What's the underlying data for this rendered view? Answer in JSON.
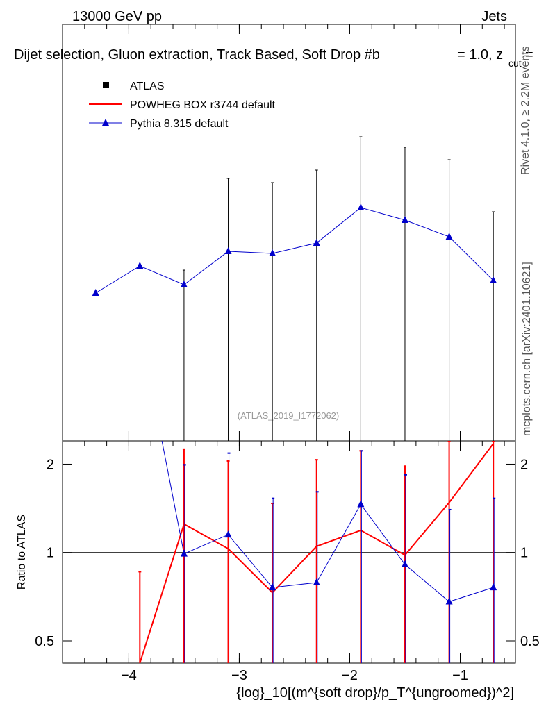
{
  "header": {
    "energy": "13000 GeV pp",
    "category": "Jets",
    "title_prefix": "Dijet selection, Gluon extraction, Track Based, Soft Drop #b",
    "title_eq": "= 1.0, z",
    "title_sub": "cut",
    "title_end": "="
  },
  "side": {
    "rivet": "Rivet 4.1.0, ≥ 2.2M events",
    "mcplots": "mcplots.cern.ch [arXiv:2401.10621]"
  },
  "watermark": "(ATLAS_2019_I1772062)",
  "legend": {
    "atlas": "ATLAS",
    "powheg": "POWHEG BOX r3744 default",
    "pythia": "Pythia 8.315 default"
  },
  "colors": {
    "data": "#000000",
    "powheg": "#ff0000",
    "pythia": "#0000cc"
  },
  "chart_data": [
    {
      "type": "line",
      "panel": "main",
      "x": [
        -4.3,
        -3.9,
        -3.5,
        -3.1,
        -2.7,
        -2.3,
        -1.9,
        -1.5,
        -1.1,
        -0.7
      ],
      "xlim": [
        -4.6,
        -0.5
      ],
      "ylim": [
        0,
        1
      ],
      "y_scale_note": "no y tick labels shown",
      "series": [
        {
          "name": "Pythia 8.315 default",
          "values": [
            0.355,
            0.42,
            0.375,
            0.455,
            0.45,
            0.475,
            0.56,
            0.53,
            0.49,
            0.385
          ]
        },
        {
          "name": "ATLAS",
          "values": [
            null,
            null,
            0.35,
            0.455,
            0.445,
            0.475,
            0.545,
            0.52,
            0.485,
            0.385
          ],
          "err_up": [
            null,
            null,
            0.06,
            0.175,
            0.175,
            0.175,
            0.185,
            0.185,
            0.19,
            0.165
          ],
          "err_down": [
            null,
            null,
            0.35,
            0.455,
            0.445,
            0.475,
            0.545,
            0.52,
            0.485,
            0.385
          ]
        }
      ]
    },
    {
      "type": "line",
      "panel": "ratio",
      "ylabel": "Ratio to ATLAS",
      "xlabel": "{log}_10[(m^{soft drop}/p_T^{ungroomed})^2]",
      "x": [
        -4.3,
        -3.9,
        -3.5,
        -3.1,
        -2.7,
        -2.3,
        -1.9,
        -1.5,
        -1.1,
        -0.7
      ],
      "xticks": [
        -4,
        -3,
        -2,
        -1
      ],
      "xtick_labels": [
        "−4",
        "−3",
        "−2",
        "−1"
      ],
      "yticks": [
        0.5,
        1,
        2
      ],
      "ytick_labels": [
        "0.5",
        "1",
        "2"
      ],
      "xlim": [
        -4.6,
        -0.5
      ],
      "ylim": [
        0.42,
        2.4
      ],
      "series": [
        {
          "name": "POWHEG BOX r3744 default",
          "x": [
            -3.9,
            -3.5,
            -3.1,
            -2.7,
            -2.3,
            -1.9,
            -1.5,
            -1.1,
            -0.7
          ],
          "values": [
            0.42,
            1.25,
            1.03,
            0.73,
            1.05,
            1.19,
            0.98,
            1.48,
            2.35
          ],
          "err_up": [
            0.86,
            2.25,
            2.05,
            1.47,
            2.07,
            2.22,
            1.97,
            2.4,
            2.4
          ],
          "err_down": [
            0.42,
            0.42,
            0.42,
            0.42,
            0.42,
            0.42,
            0.42,
            0.42,
            0.42
          ]
        },
        {
          "name": "Pythia 8.315 default",
          "x": [
            -3.7,
            -3.5,
            -3.1,
            -2.7,
            -2.3,
            -1.9,
            -1.5,
            -1.1,
            -0.7
          ],
          "values": [
            2.4,
            0.99,
            1.15,
            0.76,
            0.79,
            1.46,
            0.91,
            0.68,
            0.76
          ],
          "err_up": [
            null,
            1.99,
            2.18,
            1.53,
            1.61,
            2.22,
            1.84,
            1.4,
            1.53
          ],
          "err_down": [
            null,
            0.42,
            0.42,
            0.42,
            0.42,
            0.42,
            0.42,
            0.42,
            0.42
          ]
        }
      ]
    }
  ]
}
